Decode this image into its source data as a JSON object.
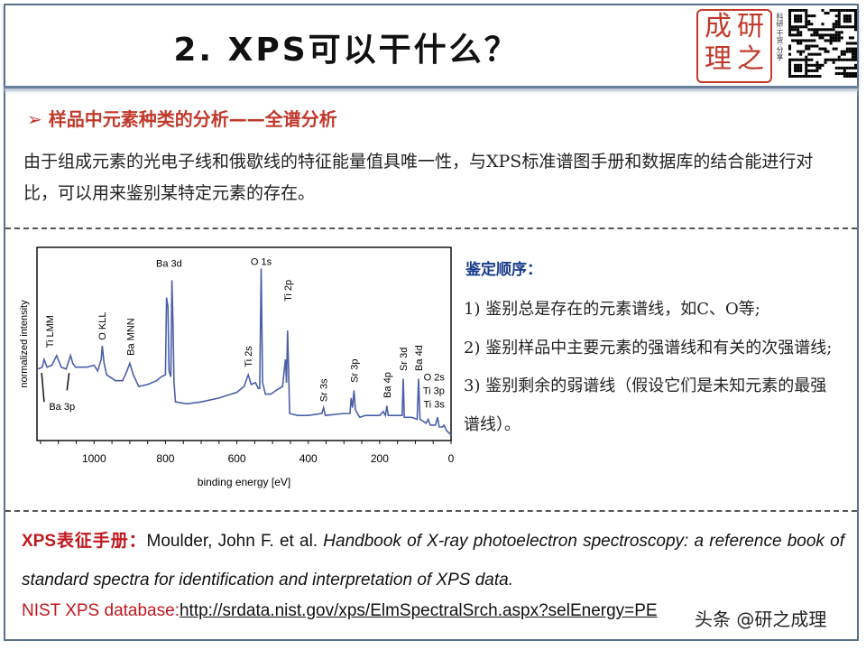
{
  "header": {
    "title": "2. XPS可以干什么？",
    "logo_text": "成研理之",
    "logo_motto": "科研·干货·分享"
  },
  "section1": {
    "title": "➢ 样品中元素种类的分析——全谱分析",
    "text": "由于组成元素的光电子线和俄歇线的特征能量值具唯一性，与XPS标准谱图手册和数据库的结合能进行对比，可以用来鉴别某特定元素的存在。"
  },
  "identification": {
    "title": "鉴定顺序：",
    "steps": [
      "1) 鉴别总是存在的元素谱线，如C、O等;",
      "2) 鉴别样品中主要元素的强谱线和有关的次强谱线;",
      "3) 鉴别剩余的弱谱线（假设它们是未知元素的最强谱线）。"
    ]
  },
  "chart_data": {
    "type": "line",
    "xlabel": "binding energy [eV]",
    "ylabel": "normalized intensity",
    "xlim": [
      1160,
      0
    ],
    "ylim": [
      0,
      100
    ],
    "x_reversed": true,
    "xticks": [
      1000,
      800,
      600,
      400,
      200,
      0
    ],
    "color": "#4a5fa8",
    "series": [
      {
        "points": [
          [
            1157,
            37
          ],
          [
            1145,
            38
          ],
          [
            1140,
            42
          ],
          [
            1132,
            38
          ],
          [
            1118,
            39
          ],
          [
            1105,
            44
          ],
          [
            1092,
            38
          ],
          [
            1078,
            37
          ],
          [
            1066,
            44
          ],
          [
            1060,
            40
          ],
          [
            1052,
            38
          ],
          [
            1020,
            38
          ],
          [
            1000,
            39
          ],
          [
            990,
            36
          ],
          [
            980,
            42
          ],
          [
            977,
            49
          ],
          [
            972,
            40
          ],
          [
            965,
            34
          ],
          [
            940,
            31
          ],
          [
            920,
            31
          ],
          [
            908,
            36
          ],
          [
            900,
            40
          ],
          [
            890,
            34
          ],
          [
            875,
            28
          ],
          [
            850,
            29
          ],
          [
            825,
            31
          ],
          [
            812,
            33
          ],
          [
            800,
            34
          ],
          [
            797,
            74
          ],
          [
            793,
            69
          ],
          [
            790,
            36
          ],
          [
            785,
            33
          ],
          [
            782,
            83
          ],
          [
            779,
            60
          ],
          [
            776,
            30
          ],
          [
            772,
            20
          ],
          [
            740,
            19
          ],
          [
            700,
            20
          ],
          [
            650,
            22
          ],
          [
            600,
            25
          ],
          [
            580,
            28
          ],
          [
            568,
            34
          ],
          [
            560,
            29
          ],
          [
            548,
            30
          ],
          [
            540,
            27
          ],
          [
            536,
            27
          ],
          [
            532,
            89
          ],
          [
            528,
            30
          ],
          [
            520,
            24
          ],
          [
            505,
            24
          ],
          [
            490,
            26
          ],
          [
            472,
            28
          ],
          [
            464,
            42
          ],
          [
            461,
            30
          ],
          [
            458,
            57
          ],
          [
            455,
            35
          ],
          [
            452,
            14
          ],
          [
            430,
            13
          ],
          [
            400,
            13
          ],
          [
            362,
            14
          ],
          [
            357,
            17
          ],
          [
            352,
            13
          ],
          [
            300,
            14
          ],
          [
            283,
            14
          ],
          [
            280,
            22
          ],
          [
            276,
            17
          ],
          [
            272,
            26
          ],
          [
            268,
            16
          ],
          [
            262,
            14
          ],
          [
            256,
            12
          ],
          [
            240,
            13
          ],
          [
            200,
            13
          ],
          [
            190,
            15
          ],
          [
            184,
            13
          ],
          [
            180,
            18
          ],
          [
            176,
            13
          ],
          [
            150,
            13
          ],
          [
            137,
            13
          ],
          [
            134,
            32
          ],
          [
            131,
            12
          ],
          [
            110,
            12
          ],
          [
            95,
            11
          ],
          [
            91,
            32
          ],
          [
            87,
            11
          ],
          [
            70,
            9
          ],
          [
            64,
            11
          ],
          [
            58,
            8
          ],
          [
            44,
            8
          ],
          [
            38,
            12
          ],
          [
            33,
            7
          ],
          [
            24,
            7
          ],
          [
            20,
            8
          ],
          [
            12,
            5
          ],
          [
            6,
            4
          ],
          [
            0,
            3
          ]
        ]
      }
    ],
    "annotations": [
      {
        "label": "Ti LMM",
        "x": 1125,
        "y": 48,
        "rotated": true
      },
      {
        "label": "O KLL",
        "x": 978,
        "y": 52,
        "rotated": true
      },
      {
        "label": "Ba MNN",
        "x": 898,
        "y": 44,
        "rotated": true
      },
      {
        "label": "Ba 3d",
        "x": 790,
        "y": 90,
        "rotated": false
      },
      {
        "label": "O 1s",
        "x": 532,
        "y": 91,
        "rotated": false
      },
      {
        "label": "Ti 2p",
        "x": 457,
        "y": 72,
        "rotated": true
      },
      {
        "label": "Ti 2s",
        "x": 568,
        "y": 38,
        "rotated": true
      },
      {
        "label": "Sr 3s",
        "x": 357,
        "y": 20,
        "rotated": true
      },
      {
        "label": "Sr 3p",
        "x": 272,
        "y": 30,
        "rotated": true
      },
      {
        "label": "Ba 4p",
        "x": 180,
        "y": 22,
        "rotated": true
      },
      {
        "label": "Sr 3d",
        "x": 134,
        "y": 36,
        "rotated": true
      },
      {
        "label": "Ba 4d",
        "x": 91,
        "y": 36,
        "rotated": true
      },
      {
        "label": "Ba 3p",
        "x": 1090,
        "y": 16,
        "rotated": false
      },
      {
        "label": "O 2s",
        "x": 18,
        "y": 31,
        "rotated": false
      },
      {
        "label": "Ti 3p",
        "x": 18,
        "y": 24,
        "rotated": false
      },
      {
        "label": "Ti 3s",
        "x": 18,
        "y": 17,
        "rotated": false
      }
    ]
  },
  "references": {
    "handbook_label": "XPS表征手册：",
    "handbook_authors": "Moulder, John F. et al. ",
    "handbook_title": "Handbook of X-ray photoelectron spectroscopy: a reference book of standard spectra for identification and interpretation of XPS data.",
    "nist_label": "NIST XPS database:",
    "nist_url": "http://srdata.nist.gov/xps/ElmSpectralSrch.aspx?selEnergy=PE"
  },
  "watermark": "头条 @研之成理"
}
